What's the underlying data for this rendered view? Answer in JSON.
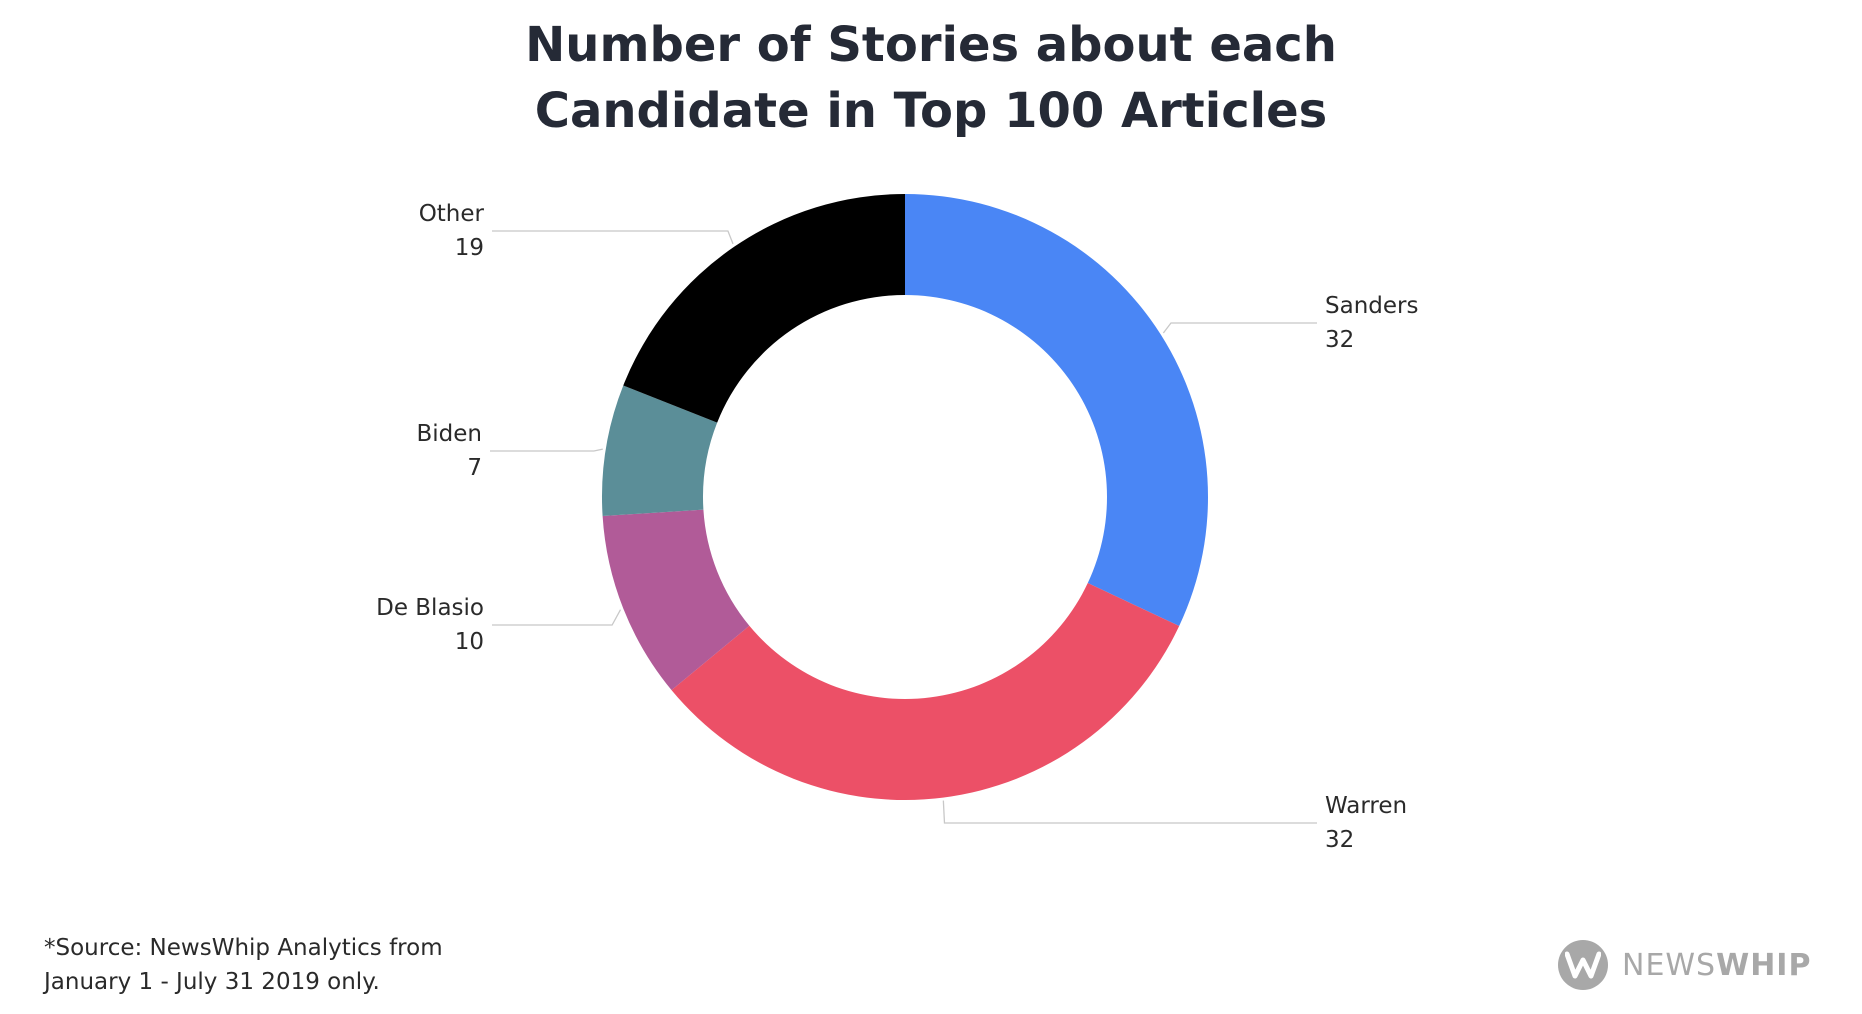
{
  "chart_data": {
    "type": "pie",
    "variant": "donut",
    "title_lines": [
      "Number of Stories about each",
      "Candidate in Top 100 Articles"
    ],
    "slices": [
      {
        "label": "Sanders",
        "value": 32,
        "color": "#4a86f5"
      },
      {
        "label": "Warren",
        "value": 32,
        "color": "#ec5067"
      },
      {
        "label": "De Blasio",
        "value": 10,
        "color": "#b15b98"
      },
      {
        "label": "Biden",
        "value": 7,
        "color": "#5b8e98"
      },
      {
        "label": "Other",
        "value": 19,
        "color": "#000000"
      }
    ],
    "start_angle": "12 o'clock",
    "direction": "clockwise",
    "legend": "none",
    "data_labels": "outside with leader lines"
  },
  "footnote": {
    "line1": "*Source: NewsWhip Analytics from",
    "line2": "January 1 - July 31 2019 only."
  },
  "brand": {
    "mark": "W",
    "name_light": "NEWS",
    "name_bold": "WHIP",
    "color": "#a8a8a8"
  }
}
